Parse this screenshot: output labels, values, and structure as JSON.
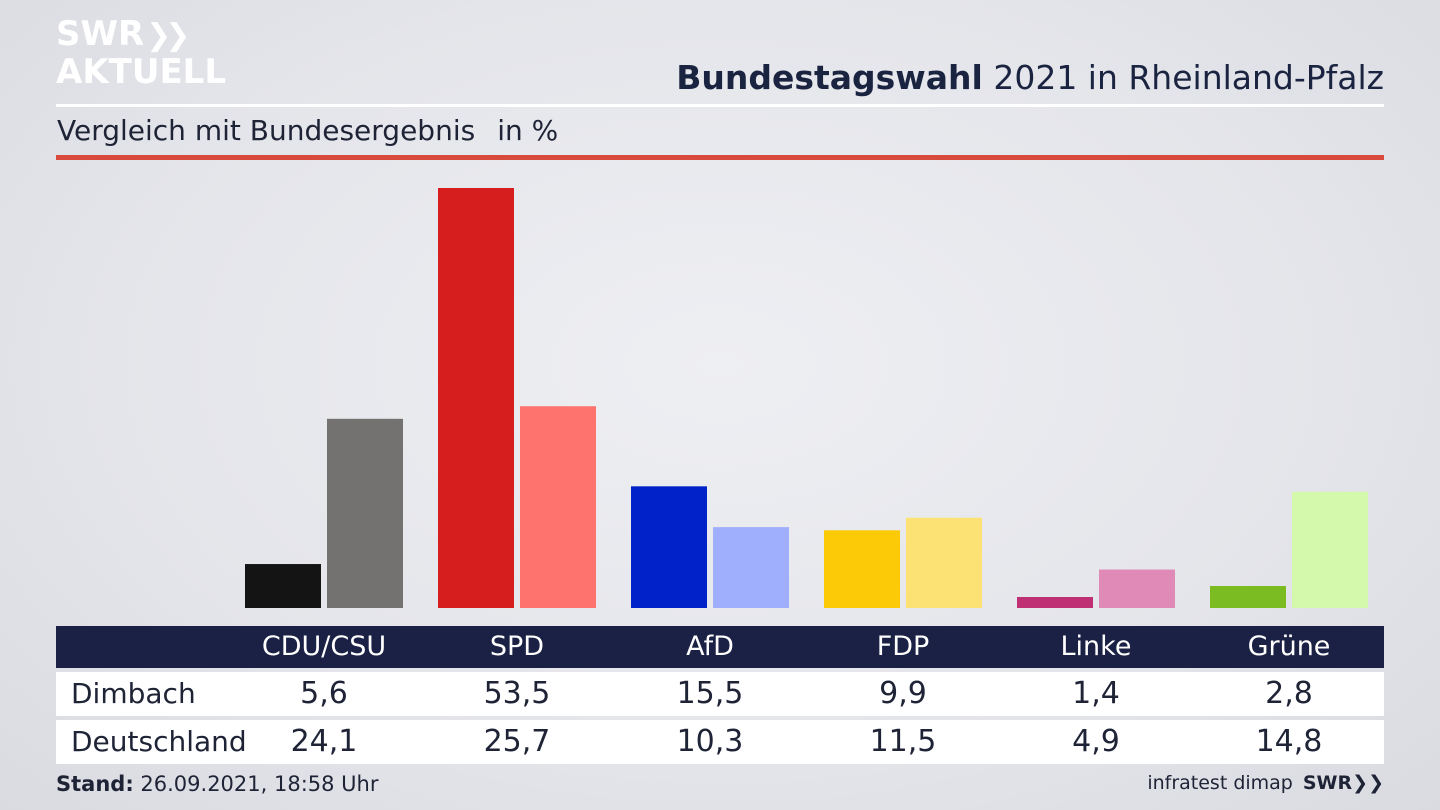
{
  "logo": {
    "line1": "SWR",
    "arrows": "❯❯",
    "line2": "AKTUELL"
  },
  "header": {
    "title_bold": "Bundestagswahl",
    "title_rest": " 2021 in Rheinland-Pfalz",
    "subtitle": "Vergleich mit Bundesergebnis",
    "unit": "in %"
  },
  "chart_data": {
    "type": "bar",
    "categories": [
      "CDU/CSU",
      "SPD",
      "AfD",
      "FDP",
      "Linke",
      "Grüne"
    ],
    "series": [
      {
        "name": "Dimbach",
        "values": [
          5.6,
          53.5,
          15.5,
          9.9,
          1.4,
          2.8
        ],
        "display": [
          "5,6",
          "53,5",
          "15,5",
          "9,9",
          "1,4",
          "2,8"
        ]
      },
      {
        "name": "Deutschland",
        "values": [
          24.1,
          25.7,
          10.3,
          11.5,
          4.9,
          14.8
        ],
        "display": [
          "24,1",
          "25,7",
          "10,3",
          "11,5",
          "4,9",
          "14,8"
        ]
      }
    ],
    "colors": {
      "Dimbach": [
        "#141414",
        "#d61e1e",
        "#0022c8",
        "#fdca08",
        "#be2f73",
        "#7abc21"
      ],
      "Deutschland": [
        "#747270",
        "#fe736e",
        "#a0aefe",
        "#fce275",
        "#e08ab8",
        "#d4f8ac"
      ]
    },
    "ylim": [
      0,
      55
    ],
    "grid": false,
    "legend": "table-below"
  },
  "footer": {
    "stand_label": "Stand:",
    "stand_value": " 26.09.2021, 18:58 Uhr",
    "source": "infratest dimap",
    "brand": "SWR❯❯"
  }
}
